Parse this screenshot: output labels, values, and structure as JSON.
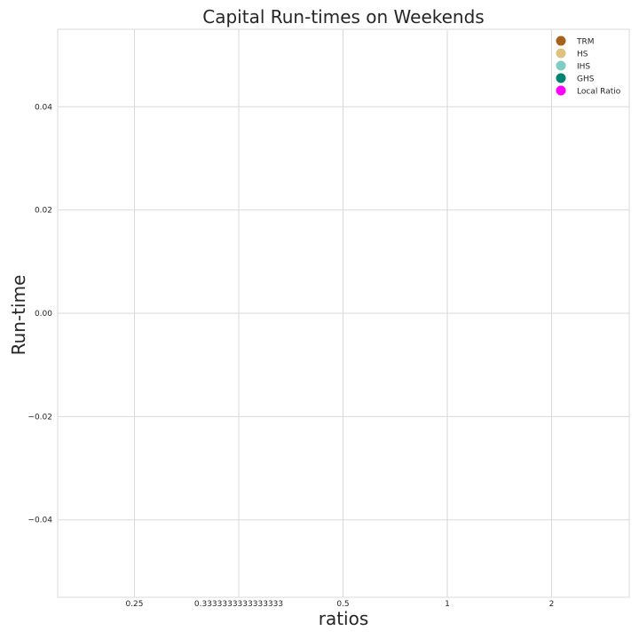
{
  "chart_data": {
    "type": "scatter",
    "title": "Capital Run-times on Weekends",
    "xlabel": "ratios",
    "ylabel": "Run-time",
    "categories": [
      "0.25",
      "0.3333333333333333",
      "0.5",
      "1",
      "2"
    ],
    "yticks": [
      "0.04",
      "0.02",
      "0.00",
      "−0.02",
      "−0.04"
    ],
    "ylim": [
      -0.055,
      0.055
    ],
    "grid": true,
    "legend_position": "top-right",
    "series": [
      {
        "name": "TRM",
        "color": "#a6611a",
        "values": []
      },
      {
        "name": "HS",
        "color": "#dfc27d",
        "values": []
      },
      {
        "name": "IHS",
        "color": "#80cdc1",
        "values": []
      },
      {
        "name": "GHS",
        "color": "#018571",
        "values": []
      },
      {
        "name": "Local Ratio",
        "color": "#ff00ff",
        "values": []
      }
    ]
  }
}
